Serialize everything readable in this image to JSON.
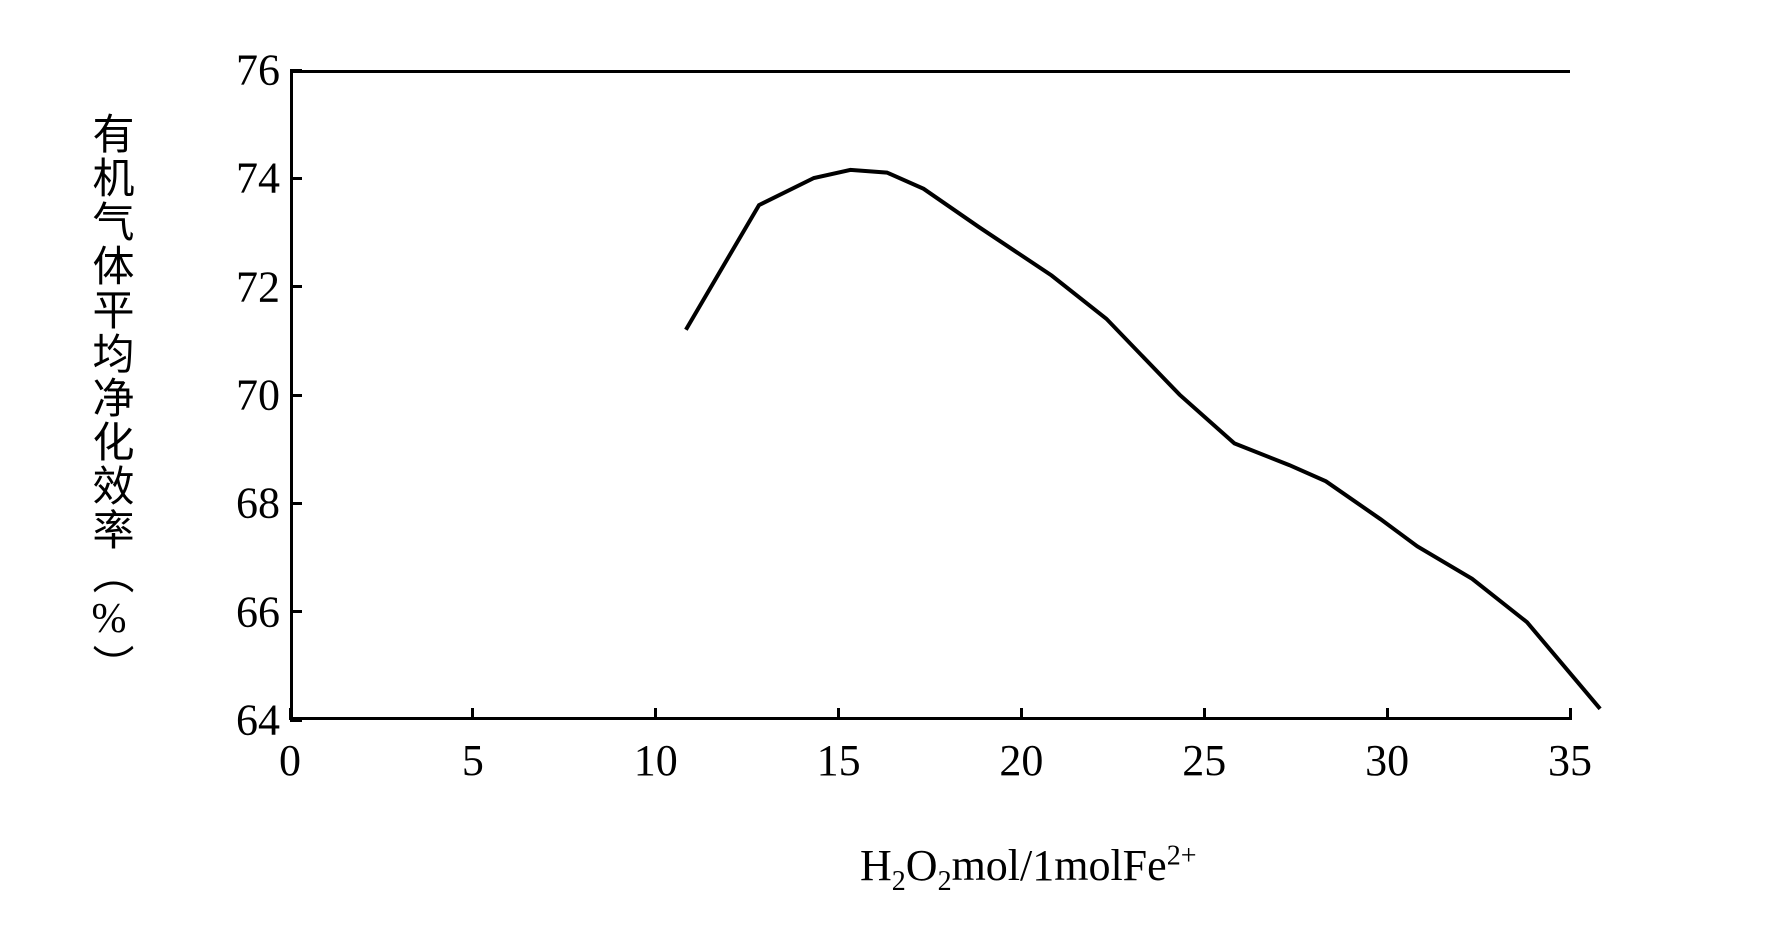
{
  "chart": {
    "type": "line",
    "title": "",
    "ylabel": "有机气体平均净化效率（%）",
    "xlabel_html": "H<sub>2</sub>O<sub>2</sub>mol/1molFe<sup>2+</sup>",
    "xlim": [
      0,
      35
    ],
    "ylim": [
      64,
      76
    ],
    "xtick_step": 5,
    "ytick_step": 2,
    "xticks": [
      0,
      5,
      10,
      15,
      20,
      25,
      30,
      35
    ],
    "yticks": [
      64,
      66,
      68,
      70,
      72,
      74,
      76
    ],
    "line_color": "#000000",
    "line_width": 4,
    "background_color": "#ffffff",
    "axis_color": "#000000",
    "tick_fontsize": 44,
    "label_fontsize": 42,
    "data": {
      "x": [
        5,
        7,
        8.5,
        9.5,
        10.5,
        11.5,
        13,
        15,
        16.5,
        17.5,
        18.5,
        20,
        21.5,
        22.5,
        24,
        25,
        26.5,
        28,
        30
      ],
      "y": [
        72.0,
        74.3,
        74.8,
        74.95,
        74.9,
        74.6,
        73.9,
        73.0,
        72.2,
        71.5,
        70.8,
        69.9,
        69.5,
        69.2,
        68.5,
        68.0,
        67.4,
        66.6,
        65.0
      ]
    }
  }
}
